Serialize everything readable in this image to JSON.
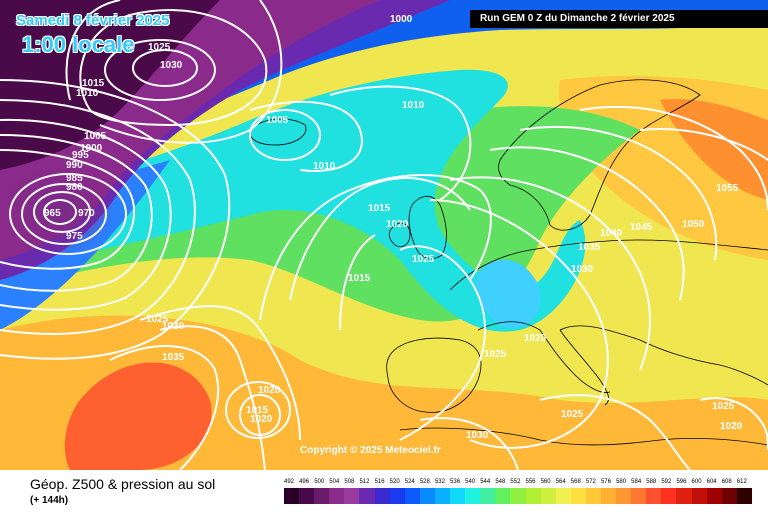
{
  "header": {
    "date": "Samedi 8 février 2025",
    "time": "1:00 locale",
    "run": "Run GEM 0 Z du Dimanche 2 février 2025"
  },
  "copyright": "Copyright © 2025 Meteociel.fr",
  "footer": {
    "title": "Géop. Z500 & pression au sol",
    "subtitle": "(+ 144h)"
  },
  "scale": {
    "labels": [
      "492",
      "496",
      "500",
      "504",
      "508",
      "512",
      "516",
      "520",
      "524",
      "528",
      "532",
      "536",
      "540",
      "544",
      "548",
      "552",
      "556",
      "560",
      "564",
      "568",
      "572",
      "576",
      "580",
      "584",
      "588",
      "592",
      "596",
      "600",
      "604",
      "608",
      "612"
    ],
    "colors": [
      "#2a002a",
      "#4a0a4a",
      "#6a1a6a",
      "#8a2a8a",
      "#9a3aa0",
      "#6a2ab0",
      "#3a2ad0",
      "#1a3af0",
      "#0a5aff",
      "#0a8aff",
      "#0ab0ff",
      "#10d8ff",
      "#20f0e0",
      "#40f0a0",
      "#60f060",
      "#90f040",
      "#b0f030",
      "#d0f040",
      "#f0f050",
      "#ffe040",
      "#ffc838",
      "#ffb030",
      "#ff9830",
      "#ff7830",
      "#ff5030",
      "#ff3020",
      "#e02010",
      "#c01008",
      "#a00000",
      "#700000",
      "#300000"
    ]
  },
  "isobar_labels": [
    {
      "text": "1000"
    },
    {
      "text": "1025"
    },
    {
      "text": "1030"
    },
    {
      "text": "1015"
    },
    {
      "text": "1010"
    },
    {
      "text": "1005"
    },
    {
      "text": "1000"
    },
    {
      "text": "995"
    },
    {
      "text": "990"
    },
    {
      "text": "985"
    },
    {
      "text": "980"
    },
    {
      "text": "965"
    },
    {
      "text": "970"
    },
    {
      "text": "975"
    },
    {
      "text": "1005"
    },
    {
      "text": "1010"
    },
    {
      "text": "1010"
    },
    {
      "text": "1015"
    },
    {
      "text": "1020"
    },
    {
      "text": "1025"
    },
    {
      "text": "1015"
    },
    {
      "text": "1025"
    },
    {
      "text": "1030"
    },
    {
      "text": "1035"
    },
    {
      "text": "1020"
    },
    {
      "text": "1015"
    },
    {
      "text": "1020"
    },
    {
      "text": "1025"
    },
    {
      "text": "1030"
    },
    {
      "text": "1030"
    },
    {
      "text": "1035"
    },
    {
      "text": "1040"
    },
    {
      "text": "1045"
    },
    {
      "text": "1050"
    },
    {
      "text": "1055"
    },
    {
      "text": "1020"
    },
    {
      "text": "1025"
    },
    {
      "text": "1025"
    },
    {
      "text": "1020"
    }
  ]
}
